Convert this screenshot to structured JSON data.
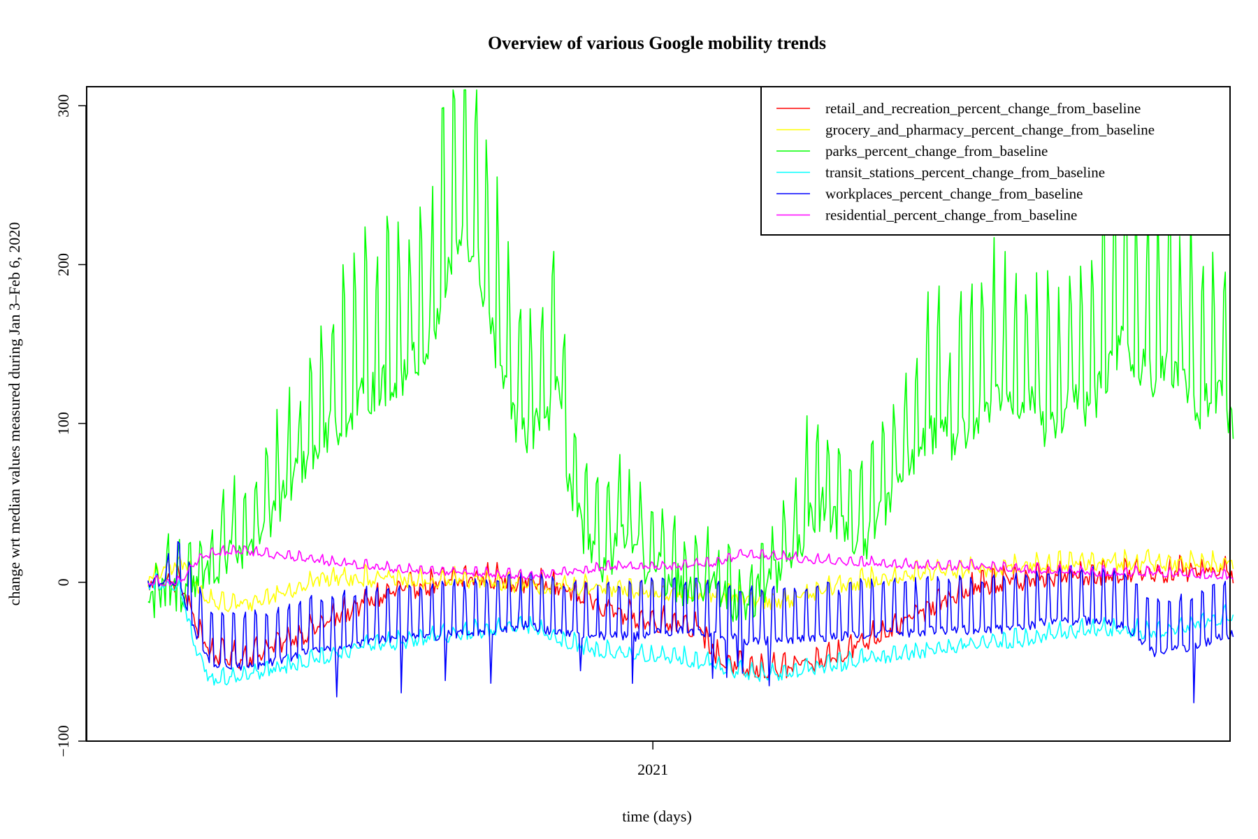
{
  "chart_data": {
    "type": "line",
    "title": "Overview of various Google mobility trends",
    "xlabel": "time (days)",
    "ylabel": "change wrt median values measured during Jan 3–Feb 6, 2020",
    "x_ticks": [
      {
        "label": "2021",
        "date": "2021-01-01"
      }
    ],
    "y_ticks": [
      {
        "label": "−100",
        "value": -100
      },
      {
        "label": "0",
        "value": 0
      },
      {
        "label": "100",
        "value": 100
      },
      {
        "label": "200",
        "value": 200
      },
      {
        "label": "300",
        "value": 300
      }
    ],
    "xlim": [
      "2020-01-07",
      "2022-01-03"
    ],
    "ylim": [
      -100,
      312
    ],
    "legend_position": "top-right",
    "grid": false,
    "series": [
      {
        "name": "retail_and_recreation_percent_change_from_baseline",
        "color": "#ff0000",
        "start_date": "2020-02-15",
        "knots": [
          [
            0,
            0
          ],
          [
            20,
            0
          ],
          [
            30,
            -25
          ],
          [
            40,
            -45
          ],
          [
            60,
            -48
          ],
          [
            80,
            -40
          ],
          [
            100,
            -32
          ],
          [
            120,
            -22
          ],
          [
            140,
            -12
          ],
          [
            160,
            -5
          ],
          [
            180,
            -2
          ],
          [
            200,
            2
          ],
          [
            220,
            2
          ],
          [
            240,
            0
          ],
          [
            260,
            -3
          ],
          [
            280,
            -10
          ],
          [
            300,
            -20
          ],
          [
            320,
            -25
          ],
          [
            340,
            -25
          ],
          [
            350,
            -30
          ],
          [
            365,
            -50
          ],
          [
            380,
            -55
          ],
          [
            400,
            -55
          ],
          [
            420,
            -52
          ],
          [
            440,
            -45
          ],
          [
            460,
            -35
          ],
          [
            480,
            -25
          ],
          [
            500,
            -15
          ],
          [
            520,
            -5
          ],
          [
            540,
            0
          ],
          [
            560,
            2
          ],
          [
            580,
            3
          ],
          [
            600,
            5
          ],
          [
            620,
            5
          ],
          [
            640,
            6
          ],
          [
            660,
            6
          ],
          [
            690,
            6
          ]
        ],
        "amp": 6,
        "noise": 5
      },
      {
        "name": "grocery_and_pharmacy_percent_change_from_baseline",
        "color": "#ffff00",
        "start_date": "2020-02-15",
        "knots": [
          [
            0,
            2
          ],
          [
            15,
            10
          ],
          [
            25,
            12
          ],
          [
            35,
            -10
          ],
          [
            50,
            -15
          ],
          [
            70,
            -12
          ],
          [
            90,
            -5
          ],
          [
            110,
            2
          ],
          [
            130,
            3
          ],
          [
            150,
            2
          ],
          [
            180,
            0
          ],
          [
            210,
            2
          ],
          [
            240,
            -2
          ],
          [
            270,
            -3
          ],
          [
            300,
            -5
          ],
          [
            330,
            -6
          ],
          [
            360,
            -8
          ],
          [
            380,
            -10
          ],
          [
            400,
            -12
          ],
          [
            420,
            -8
          ],
          [
            440,
            -2
          ],
          [
            470,
            3
          ],
          [
            500,
            6
          ],
          [
            530,
            8
          ],
          [
            560,
            10
          ],
          [
            590,
            12
          ],
          [
            620,
            12
          ],
          [
            650,
            12
          ],
          [
            690,
            12
          ]
        ],
        "amp": 5,
        "noise": 4
      },
      {
        "name": "parks_percent_change_from_baseline",
        "color": "#00ff00",
        "start_date": "2020-02-15",
        "knots": [
          [
            0,
            0
          ],
          [
            20,
            5
          ],
          [
            40,
            15
          ],
          [
            60,
            30
          ],
          [
            80,
            50
          ],
          [
            100,
            90
          ],
          [
            120,
            110
          ],
          [
            140,
            130
          ],
          [
            160,
            140
          ],
          [
            180,
            160
          ],
          [
            190,
            200
          ],
          [
            200,
            230
          ],
          [
            210,
            210
          ],
          [
            220,
            160
          ],
          [
            230,
            120
          ],
          [
            240,
            100
          ],
          [
            250,
            110
          ],
          [
            260,
            130
          ],
          [
            270,
            60
          ],
          [
            280,
            30
          ],
          [
            290,
            25
          ],
          [
            300,
            35
          ],
          [
            310,
            30
          ],
          [
            320,
            20
          ],
          [
            330,
            15
          ],
          [
            340,
            10
          ],
          [
            350,
            8
          ],
          [
            360,
            5
          ],
          [
            370,
            0
          ],
          [
            380,
            -5
          ],
          [
            390,
            5
          ],
          [
            400,
            15
          ],
          [
            410,
            25
          ],
          [
            420,
            50
          ],
          [
            430,
            60
          ],
          [
            440,
            50
          ],
          [
            450,
            35
          ],
          [
            460,
            40
          ],
          [
            470,
            60
          ],
          [
            480,
            80
          ],
          [
            490,
            95
          ],
          [
            500,
            105
          ],
          [
            510,
            100
          ],
          [
            520,
            105
          ],
          [
            530,
            120
          ],
          [
            540,
            130
          ],
          [
            550,
            130
          ],
          [
            560,
            125
          ],
          [
            570,
            105
          ],
          [
            580,
            115
          ],
          [
            590,
            125
          ],
          [
            600,
            120
          ],
          [
            610,
            145
          ],
          [
            620,
            165
          ],
          [
            630,
            150
          ],
          [
            640,
            140
          ],
          [
            650,
            150
          ],
          [
            660,
            130
          ],
          [
            670,
            120
          ],
          [
            680,
            130
          ],
          [
            690,
            110
          ]
        ],
        "amp": 38,
        "noise": 14
      },
      {
        "name": "transit_stations_percent_change_from_baseline",
        "color": "#00ffff",
        "start_date": "2020-02-15",
        "knots": [
          [
            0,
            0
          ],
          [
            20,
            -5
          ],
          [
            30,
            -40
          ],
          [
            40,
            -62
          ],
          [
            60,
            -60
          ],
          [
            80,
            -55
          ],
          [
            100,
            -50
          ],
          [
            120,
            -45
          ],
          [
            140,
            -40
          ],
          [
            160,
            -38
          ],
          [
            180,
            -35
          ],
          [
            200,
            -32
          ],
          [
            220,
            -30
          ],
          [
            240,
            -28
          ],
          [
            260,
            -35
          ],
          [
            280,
            -42
          ],
          [
            300,
            -45
          ],
          [
            320,
            -47
          ],
          [
            340,
            -48
          ],
          [
            360,
            -52
          ],
          [
            380,
            -58
          ],
          [
            400,
            -58
          ],
          [
            420,
            -55
          ],
          [
            440,
            -52
          ],
          [
            460,
            -48
          ],
          [
            480,
            -45
          ],
          [
            500,
            -42
          ],
          [
            520,
            -40
          ],
          [
            540,
            -38
          ],
          [
            560,
            -36
          ],
          [
            580,
            -32
          ],
          [
            600,
            -30
          ],
          [
            620,
            -30
          ],
          [
            640,
            -32
          ],
          [
            660,
            -28
          ],
          [
            690,
            -20
          ]
        ],
        "amp": 5,
        "noise": 3
      },
      {
        "name": "workplaces_percent_change_from_baseline",
        "color": "#0000ff",
        "start_date": "2020-02-15",
        "knots": [
          [
            0,
            0
          ],
          [
            20,
            0
          ],
          [
            30,
            -30
          ],
          [
            40,
            -50
          ],
          [
            60,
            -52
          ],
          [
            80,
            -48
          ],
          [
            100,
            -42
          ],
          [
            120,
            -38
          ],
          [
            140,
            -35
          ],
          [
            160,
            -33
          ],
          [
            180,
            -32
          ],
          [
            200,
            -30
          ],
          [
            220,
            -28
          ],
          [
            240,
            -25
          ],
          [
            260,
            -30
          ],
          [
            280,
            -32
          ],
          [
            300,
            -32
          ],
          [
            320,
            -30
          ],
          [
            340,
            -28
          ],
          [
            360,
            -30
          ],
          [
            380,
            -35
          ],
          [
            400,
            -35
          ],
          [
            420,
            -34
          ],
          [
            440,
            -32
          ],
          [
            460,
            -30
          ],
          [
            480,
            -30
          ],
          [
            500,
            -28
          ],
          [
            520,
            -28
          ],
          [
            540,
            -28
          ],
          [
            560,
            -25
          ],
          [
            580,
            -22
          ],
          [
            600,
            -22
          ],
          [
            620,
            -25
          ],
          [
            640,
            -42
          ],
          [
            660,
            -40
          ],
          [
            690,
            -30
          ]
        ],
        "amp": 30,
        "noise": 3
      },
      {
        "name": "residential_percent_change_from_baseline",
        "color": "#ff00ff",
        "start_date": "2020-02-15",
        "knots": [
          [
            0,
            0
          ],
          [
            20,
            0
          ],
          [
            30,
            12
          ],
          [
            40,
            18
          ],
          [
            60,
            20
          ],
          [
            80,
            17
          ],
          [
            100,
            15
          ],
          [
            120,
            12
          ],
          [
            140,
            10
          ],
          [
            160,
            8
          ],
          [
            180,
            7
          ],
          [
            200,
            6
          ],
          [
            220,
            5
          ],
          [
            240,
            4
          ],
          [
            260,
            5
          ],
          [
            280,
            8
          ],
          [
            300,
            10
          ],
          [
            320,
            10
          ],
          [
            340,
            10
          ],
          [
            360,
            12
          ],
          [
            380,
            18
          ],
          [
            400,
            16
          ],
          [
            420,
            14
          ],
          [
            440,
            13
          ],
          [
            460,
            12
          ],
          [
            480,
            11
          ],
          [
            500,
            10
          ],
          [
            520,
            10
          ],
          [
            540,
            9
          ],
          [
            560,
            8
          ],
          [
            580,
            7
          ],
          [
            600,
            6
          ],
          [
            620,
            6
          ],
          [
            640,
            6
          ],
          [
            660,
            5
          ],
          [
            690,
            4
          ]
        ],
        "amp": 3,
        "noise": 1.5
      }
    ]
  }
}
